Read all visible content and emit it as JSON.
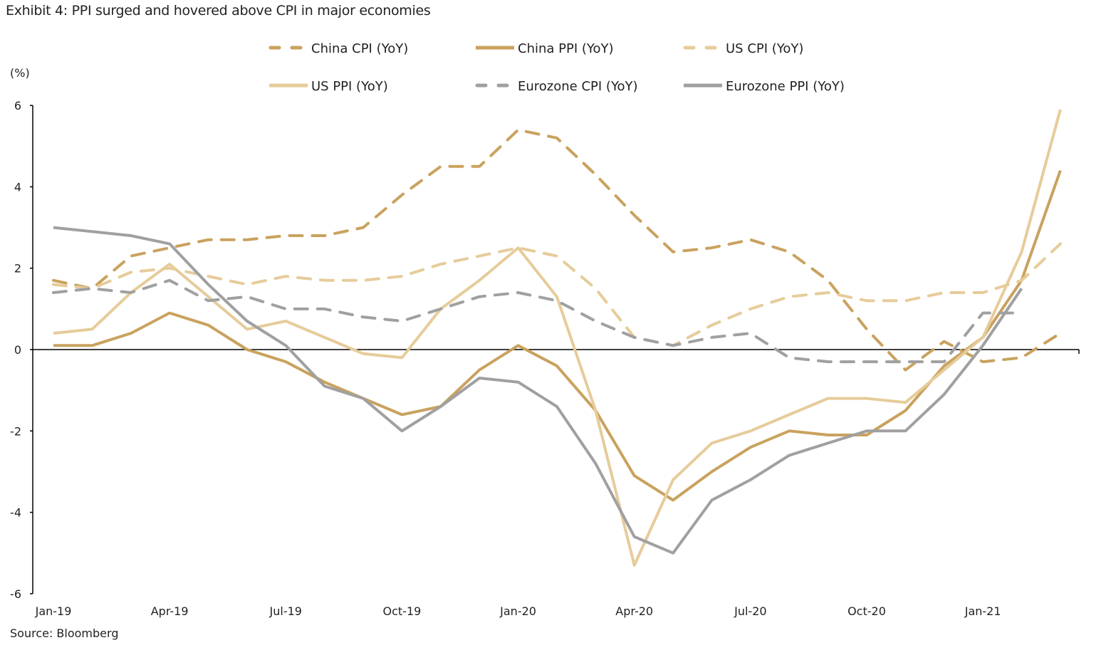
{
  "chart_data": {
    "type": "line",
    "title": "Exhibit 4: PPI surged and hovered above CPI in major economies",
    "source": "Source: Bloomberg",
    "ylabel": "(%)",
    "ylim": [
      -6,
      6
    ],
    "yticks": [
      6,
      4,
      2,
      0,
      -2,
      -4,
      -6
    ],
    "x": [
      "Jan-19",
      "Feb-19",
      "Mar-19",
      "Apr-19",
      "May-19",
      "Jun-19",
      "Jul-19",
      "Aug-19",
      "Sep-19",
      "Oct-19",
      "Nov-19",
      "Dec-19",
      "Jan-20",
      "Feb-20",
      "Mar-20",
      "Apr-20",
      "May-20",
      "Jun-20",
      "Jul-20",
      "Aug-20",
      "Sep-20",
      "Oct-20",
      "Nov-20",
      "Dec-20",
      "Jan-21",
      "Feb-21",
      "Mar-21"
    ],
    "xtick_labels": [
      "Jan-19",
      "Apr-19",
      "Jul-19",
      "Oct-19",
      "Jan-20",
      "Apr-20",
      "Jul-20",
      "Oct-20",
      "Jan-21"
    ],
    "legend_position": "top",
    "grid": false,
    "series": [
      {
        "name": "China CPI (YoY)",
        "color": "#c9a25e",
        "dash": true,
        "values": [
          1.7,
          1.5,
          2.3,
          2.5,
          2.7,
          2.7,
          2.8,
          2.8,
          3.0,
          3.8,
          4.5,
          4.5,
          5.4,
          5.2,
          4.3,
          3.3,
          2.4,
          2.5,
          2.7,
          2.4,
          1.7,
          0.5,
          -0.5,
          0.2,
          -0.3,
          -0.2,
          0.4
        ]
      },
      {
        "name": "China PPI (YoY)",
        "color": "#c9a25e",
        "dash": false,
        "values": [
          0.1,
          0.1,
          0.4,
          0.9,
          0.6,
          0.0,
          -0.3,
          -0.8,
          -1.2,
          -1.6,
          -1.4,
          -0.5,
          0.1,
          -0.4,
          -1.5,
          -3.1,
          -3.7,
          -3.0,
          -2.4,
          -2.0,
          -2.1,
          -2.1,
          -1.5,
          -0.4,
          0.3,
          1.7,
          4.4
        ]
      },
      {
        "name": "US CPI (YoY)",
        "color": "#e6cc9a",
        "dash": true,
        "values": [
          1.6,
          1.5,
          1.9,
          2.0,
          1.8,
          1.6,
          1.8,
          1.7,
          1.7,
          1.8,
          2.1,
          2.3,
          2.5,
          2.3,
          1.5,
          0.3,
          0.1,
          0.6,
          1.0,
          1.3,
          1.4,
          1.2,
          1.2,
          1.4,
          1.4,
          1.7,
          2.6
        ]
      },
      {
        "name": "US PPI (YoY)",
        "color": "#e6cc9a",
        "dash": false,
        "values": [
          0.4,
          0.5,
          1.4,
          2.1,
          1.3,
          0.5,
          0.7,
          0.3,
          -0.1,
          -0.2,
          1.0,
          1.7,
          2.5,
          1.3,
          -1.5,
          -5.3,
          -3.2,
          -2.3,
          -2.0,
          -1.6,
          -1.2,
          -1.2,
          -1.3,
          -0.5,
          0.3,
          2.4,
          5.9
        ]
      },
      {
        "name": "Eurozone CPI (YoY)",
        "color": "#a0a0a0",
        "dash": true,
        "values": [
          1.4,
          1.5,
          1.4,
          1.7,
          1.2,
          1.3,
          1.0,
          1.0,
          0.8,
          0.7,
          1.0,
          1.3,
          1.4,
          1.2,
          0.7,
          0.3,
          0.1,
          0.3,
          0.4,
          -0.2,
          -0.3,
          -0.3,
          -0.3,
          -0.3,
          0.9,
          0.9,
          null
        ]
      },
      {
        "name": "Eurozone PPI (YoY)",
        "color": "#a0a0a0",
        "dash": false,
        "values": [
          3.0,
          2.9,
          2.8,
          2.6,
          1.6,
          0.7,
          0.1,
          -0.9,
          -1.2,
          -2.0,
          -1.4,
          -0.7,
          -0.8,
          -1.4,
          -2.8,
          -4.6,
          -5.0,
          -3.7,
          -3.2,
          -2.6,
          -2.3,
          -2.0,
          -2.0,
          -1.1,
          0.1,
          1.5,
          null
        ]
      }
    ]
  }
}
